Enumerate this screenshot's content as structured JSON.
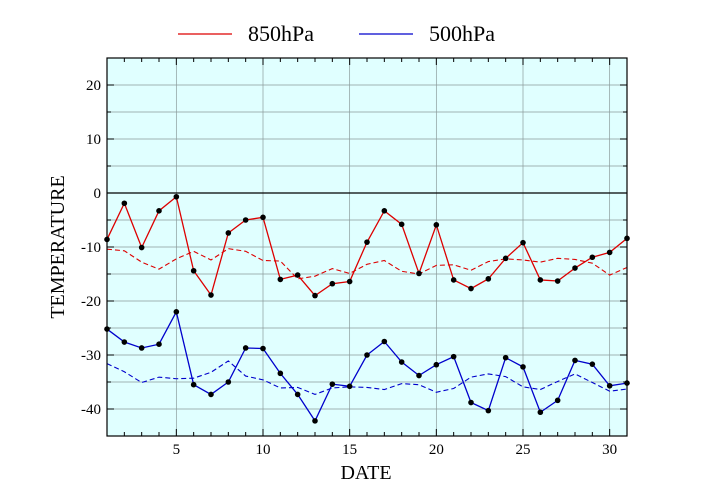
{
  "chart_data": {
    "type": "line",
    "xlabel": "DATE",
    "ylabel": "TEMPERATURE",
    "xlim": [
      1,
      31
    ],
    "ylim": [
      -45,
      25
    ],
    "x_ticks": [
      5,
      10,
      15,
      20,
      25,
      30
    ],
    "y_ticks": [
      -40,
      -30,
      -20,
      -10,
      0,
      10,
      20
    ],
    "minor_y_step": 5,
    "minor_x_step": 1,
    "grid": true,
    "plot_background": "#e0ffff",
    "zero_line": true,
    "legend_position": "top-center",
    "x": [
      1,
      2,
      3,
      4,
      5,
      6,
      7,
      8,
      9,
      10,
      11,
      12,
      13,
      14,
      15,
      16,
      17,
      18,
      19,
      20,
      21,
      22,
      23,
      24,
      25,
      26,
      27,
      28,
      29,
      30,
      31
    ],
    "series": [
      {
        "name": "850hPa",
        "color": "#dd0000",
        "values": [
          -8.6,
          -1.9,
          -10.1,
          -3.3,
          -0.7,
          -14.4,
          -18.9,
          -7.4,
          -5.0,
          -4.5,
          -16.0,
          -15.2,
          -19.0,
          -16.8,
          -16.4,
          -9.1,
          -3.3,
          -5.8,
          -14.9,
          -5.9,
          -16.1,
          -17.7,
          -15.9,
          -12.1,
          -9.2,
          -16.1,
          -16.3,
          -13.9,
          -11.9,
          -11.0,
          -8.4
        ],
        "reference": [
          -10.4,
          -10.7,
          -12.8,
          -14.1,
          -12.2,
          -10.8,
          -12.4,
          -10.3,
          -10.8,
          -12.5,
          -12.6,
          -15.9,
          -15.4,
          -14.0,
          -14.9,
          -13.2,
          -12.5,
          -14.5,
          -15.0,
          -13.4,
          -13.3,
          -14.3,
          -12.7,
          -12.2,
          -12.4,
          -12.8,
          -12.1,
          -12.3,
          -13.0,
          -15.2,
          -13.8
        ]
      },
      {
        "name": "500hPa",
        "color": "#0000cc",
        "values": [
          -25.2,
          -27.6,
          -28.7,
          -28.0,
          -22.0,
          -35.5,
          -37.3,
          -35.0,
          -28.7,
          -28.8,
          -33.4,
          -37.3,
          -42.2,
          -35.4,
          -35.8,
          -30.0,
          -27.5,
          -31.3,
          -33.8,
          -31.8,
          -30.3,
          -38.8,
          -40.3,
          -30.5,
          -32.2,
          -40.6,
          -38.4,
          -31.0,
          -31.7,
          -35.7,
          -35.2
        ],
        "reference": [
          -31.6,
          -33.1,
          -35.1,
          -34.1,
          -34.4,
          -34.3,
          -33.2,
          -31.1,
          -33.9,
          -34.6,
          -36.1,
          -36.0,
          -37.3,
          -36.1,
          -35.9,
          -36.0,
          -36.4,
          -35.3,
          -35.5,
          -36.9,
          -36.2,
          -34.1,
          -33.5,
          -34.0,
          -35.9,
          -36.4,
          -34.9,
          -33.5,
          -35.1,
          -36.7,
          -36.3
        ]
      }
    ]
  }
}
